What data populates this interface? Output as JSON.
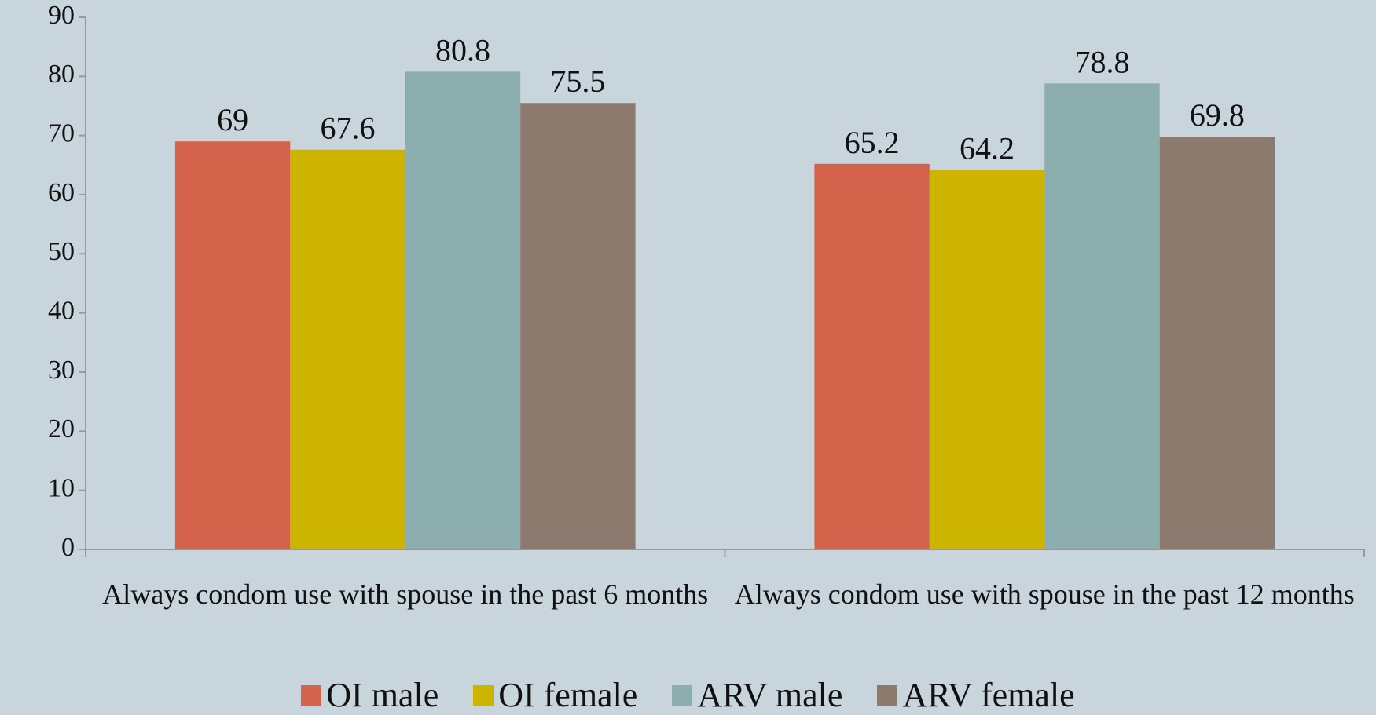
{
  "chart_data": {
    "type": "bar",
    "categories": [
      "Always condom use with spouse in the past 6 months",
      "Always condom use with spouse in the past 12 months"
    ],
    "series": [
      {
        "name": "OI male",
        "color": "#d4634b",
        "values": [
          69,
          65.2
        ]
      },
      {
        "name": "OI female",
        "color": "#ccb400",
        "values": [
          67.6,
          64.2
        ]
      },
      {
        "name": "ARV male",
        "color": "#8daeae",
        "values": [
          80.8,
          78.8
        ]
      },
      {
        "name": "ARV female",
        "color": "#8c7a6f",
        "values": [
          75.5,
          69.8
        ]
      }
    ],
    "ylim": [
      0,
      90
    ],
    "yticks": [
      0,
      10,
      20,
      30,
      40,
      50,
      60,
      70,
      80,
      90
    ],
    "grid": false,
    "legend": "bottom"
  }
}
